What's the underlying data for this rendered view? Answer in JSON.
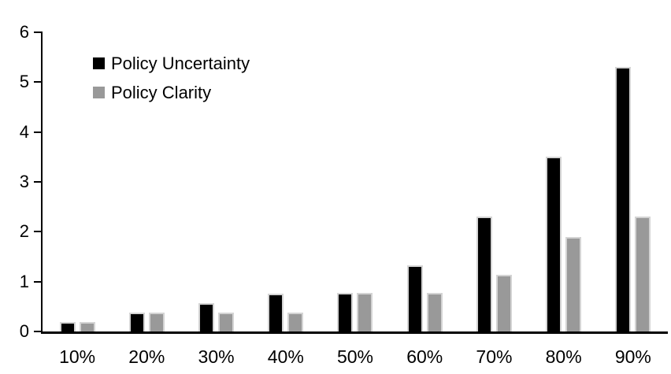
{
  "chart_data": {
    "type": "bar",
    "title": "",
    "xlabel": "",
    "ylabel": "",
    "categories": [
      "10%",
      "20%",
      "30%",
      "40%",
      "50%",
      "60%",
      "70%",
      "80%",
      "90%"
    ],
    "series": [
      {
        "name": "Policy Uncertainty",
        "color": "#000000",
        "values": [
          0.19,
          0.38,
          0.57,
          0.76,
          0.78,
          1.33,
          2.3,
          3.5,
          5.3
        ]
      },
      {
        "name": "Policy Clarity",
        "color": "#999999",
        "values": [
          0.19,
          0.38,
          0.38,
          0.38,
          0.77,
          0.77,
          1.14,
          1.9,
          2.3
        ]
      }
    ],
    "ylim": [
      0,
      6
    ],
    "yticks": [
      0,
      1,
      2,
      3,
      4,
      5,
      6
    ],
    "grid": false,
    "legend_position": "upper-left-inside",
    "colors": {
      "axis": "#000000",
      "bar_border": "#d4d4d4",
      "background": "#ffffff",
      "text": "#000000"
    }
  }
}
